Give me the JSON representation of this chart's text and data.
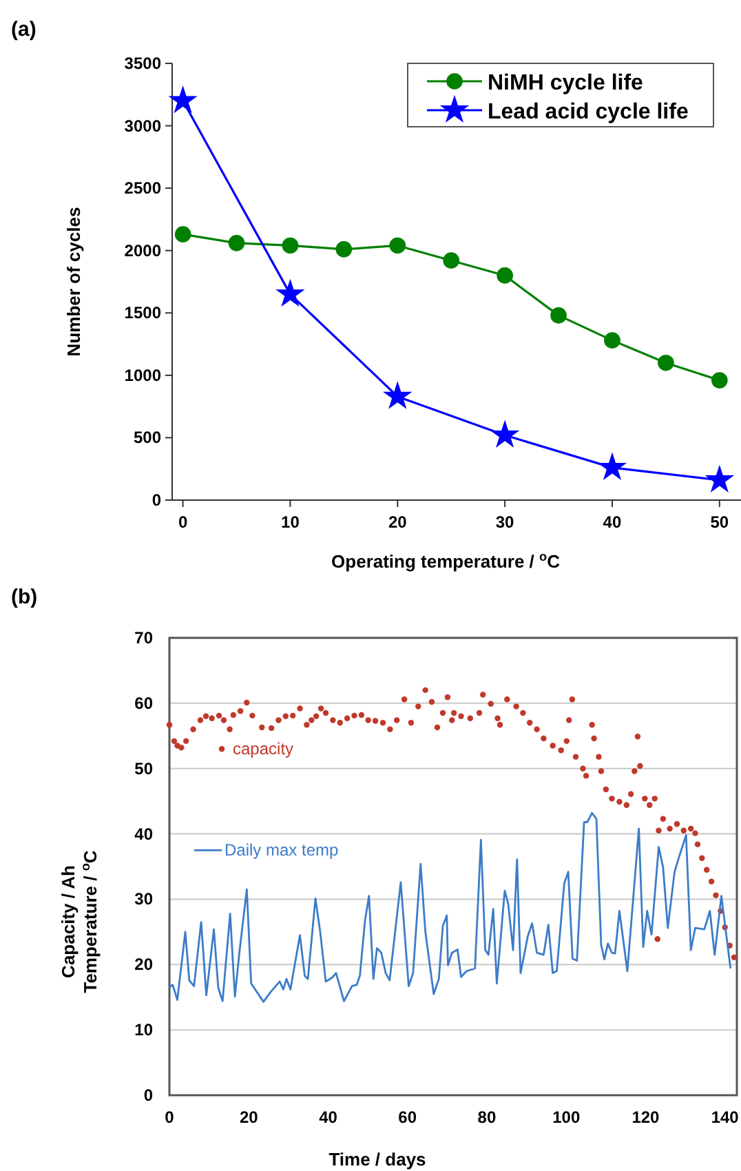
{
  "chart_data": [
    {
      "type": "line",
      "title": "(a)",
      "xlabel": "Operating temperature / $^{o}$C",
      "ylabel": "Number of cycles",
      "xlim": [
        -1,
        52
      ],
      "ylim": [
        0,
        3500
      ],
      "xticks": [
        0,
        10,
        20,
        30,
        40,
        50
      ],
      "yticks": [
        0,
        500,
        1000,
        1500,
        2000,
        2500,
        3000,
        3500
      ],
      "grid": false,
      "legend": "top right",
      "series": [
        {
          "name": "NiMH cycle life",
          "color": "#008000",
          "marker": "circle",
          "x": [
            0,
            5,
            10,
            15,
            20,
            25,
            30,
            35,
            40,
            45,
            50
          ],
          "values": [
            2130,
            2060,
            2040,
            2010,
            2040,
            1920,
            1800,
            1480,
            1280,
            1100,
            960
          ]
        },
        {
          "name": "Lead acid cycle life",
          "color": "#0000ff",
          "marker": "star",
          "x": [
            0,
            10,
            20,
            30,
            40,
            50
          ],
          "values": [
            3200,
            1650,
            830,
            520,
            260,
            160
          ]
        }
      ]
    },
    {
      "type": "line",
      "title": "(b)",
      "xlabel": "Time / days",
      "ylabel": "Capacity / Ah\nTemperature / $^{o}$C",
      "xlim": [
        0,
        143
      ],
      "ylim": [
        0,
        70
      ],
      "xticks": [
        0,
        20,
        40,
        60,
        80,
        100,
        120,
        140
      ],
      "yticks": [
        0,
        10,
        20,
        30,
        40,
        50,
        60,
        70
      ],
      "grid": "y",
      "legend": "left",
      "series": [
        {
          "name": "capacity",
          "type": "scatter",
          "color": "#c0392b",
          "marker": "circle",
          "x": [
            0,
            1.2,
            2,
            3,
            4.2,
            6,
            7.8,
            9.2,
            10.7,
            12.5,
            13.7,
            15.2,
            16.1,
            17.9,
            19.5,
            20.9,
            23.3,
            25.7,
            27.5,
            29.3,
            31.1,
            32.9,
            34.6,
            35.8,
            37,
            38.2,
            39.4,
            41.2,
            43,
            44.8,
            46.6,
            48.4,
            50.1,
            51.9,
            53.8,
            55.6,
            57.3,
            59.2,
            60.9,
            62.7,
            64.5,
            66.1,
            67.5,
            68.9,
            70.1,
            71.2,
            71.7,
            73.5,
            75.8,
            78.1,
            79,
            81,
            82.7,
            83.3,
            85.1,
            87.4,
            89.1,
            90.8,
            92.6,
            94.3,
            96.6,
            98.7,
            100.1,
            100.7,
            101.5,
            102.4,
            104.2,
            105,
            106.5,
            107,
            108.2,
            108.8,
            110,
            111.5,
            113.4,
            115.2,
            116.3,
            117.2,
            118,
            118.6,
            119.8,
            121,
            122.3,
            123,
            123.3,
            124.4,
            126.1,
            127.9,
            129.6,
            131.4,
            132.5,
            133.1,
            134.2,
            135.4,
            136.6,
            137.7,
            138.9,
            140,
            141.2,
            142.3
          ],
          "values": [
            56.7,
            54.2,
            53.5,
            53.2,
            54.2,
            56,
            57.4,
            58,
            57.7,
            58.1,
            57.4,
            56,
            58.2,
            58.8,
            60.1,
            58.1,
            56.3,
            56.2,
            57.4,
            58,
            58.1,
            59.2,
            56.7,
            57.4,
            58,
            59.2,
            58.5,
            57.4,
            57,
            57.7,
            58.1,
            58.2,
            57.4,
            57.3,
            57,
            56,
            57.4,
            60.6,
            57,
            59.5,
            62,
            60.2,
            56.3,
            58.5,
            60.9,
            57.4,
            58.5,
            58,
            57.7,
            58.5,
            61.3,
            59.9,
            57.7,
            56.7,
            60.6,
            59.5,
            58.5,
            57,
            56,
            54.6,
            53.5,
            52.8,
            54.2,
            57.4,
            60.6,
            51.8,
            50,
            48.9,
            56.7,
            54.6,
            51.8,
            49.6,
            46.8,
            45.4,
            44.9,
            44.4,
            46.1,
            49.6,
            54.9,
            50.4,
            45.4,
            44.4,
            45.4,
            23.9,
            40.5,
            42.3,
            40.8,
            41.5,
            40.5,
            40.8,
            40.1,
            38.4,
            36.3,
            34.5,
            32.7,
            30.6,
            28.2,
            25.7,
            22.9,
            21.1
          ]
        },
        {
          "name": "Daily max temp",
          "color": "#3d7cc9",
          "marker": "none",
          "x": [
            0,
            0.8,
            2,
            4,
            5,
            6.2,
            8,
            9.3,
            11.2,
            12.3,
            13.4,
            15.3,
            16.5,
            17.7,
            19.5,
            20.6,
            23.7,
            25.5,
            27.8,
            28.7,
            29.5,
            30.5,
            32.9,
            34.1,
            34.9,
            36.8,
            38,
            39.4,
            41,
            42,
            44,
            46,
            47.2,
            48,
            49.3,
            50.3,
            51.4,
            52.3,
            53.4,
            54.5,
            55.5,
            58.3,
            60.3,
            61.4,
            63.3,
            64.5,
            66.6,
            67.9,
            68.9,
            69.9,
            70.2,
            71.2,
            72.6,
            73.5,
            74.9,
            77,
            78.5,
            79.6,
            80.4,
            81.6,
            82.5,
            84.5,
            85.4,
            86.6,
            87.6,
            88.5,
            90.3,
            91.4,
            92.6,
            94.3,
            95.5,
            96.6,
            97.6,
            99.5,
            100.5,
            101.6,
            102.7,
            104.5,
            105.3,
            106.5,
            107.6,
            108.8,
            109.6,
            110.5,
            111.5,
            112.3,
            113.4,
            115.4,
            118.3,
            119.4,
            120.4,
            121.5,
            123.3,
            124.4,
            125.6,
            127.3,
            128.5,
            130.2,
            131.4,
            132.5,
            134.8,
            136.2,
            137.4,
            139.1,
            141.4
          ],
          "values": [
            16.5,
            16.9,
            14.6,
            25,
            17.6,
            16.7,
            26.5,
            15.3,
            25.4,
            16.5,
            14.4,
            27.8,
            15.1,
            22.2,
            31.5,
            17.1,
            14.3,
            15.8,
            17.4,
            16.2,
            17.8,
            16.2,
            24.5,
            18.3,
            17.8,
            30.1,
            25,
            17.4,
            18,
            18.7,
            14.4,
            16.7,
            16.9,
            18.3,
            26.8,
            30.5,
            17.8,
            22.5,
            21.8,
            18.7,
            17.6,
            32.6,
            16.7,
            18.7,
            35.4,
            25,
            15.5,
            17.8,
            25.9,
            27.5,
            19.9,
            21.8,
            22.3,
            18.1,
            19,
            19.4,
            39.1,
            22.2,
            21.5,
            28.5,
            17.1,
            31.3,
            29.2,
            22.2,
            36.1,
            18.7,
            24.3,
            26.3,
            21.8,
            21.5,
            26.1,
            18.7,
            19,
            32.4,
            34.2,
            20.9,
            20.6,
            41.8,
            41.8,
            43.2,
            42.3,
            23,
            20.8,
            23.2,
            21.8,
            21.7,
            28.2,
            19,
            40.8,
            22.7,
            28.2,
            24.6,
            38,
            34.9,
            25.6,
            34.2,
            36.6,
            39.8,
            22.2,
            25.6,
            25.4,
            28.2,
            21.5,
            30.5,
            19.4
          ]
        }
      ]
    }
  ]
}
